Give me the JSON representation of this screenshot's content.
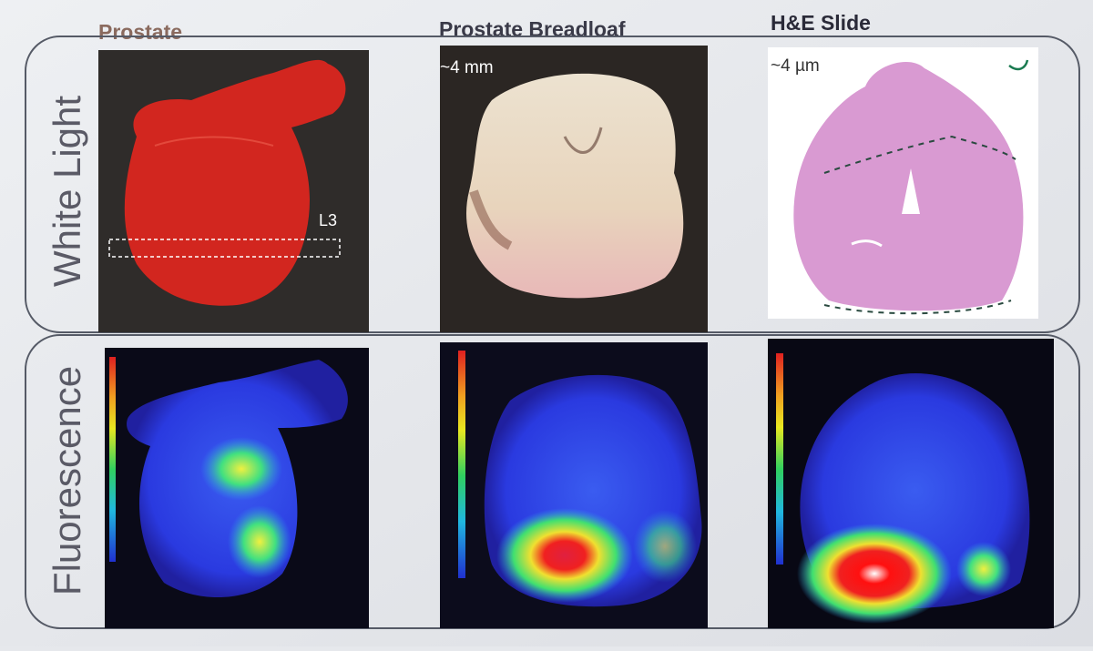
{
  "columns": [
    "Prostate",
    "Prostate Breadloaf",
    "H&E Slide"
  ],
  "rows": [
    "White Light",
    "Fluorescence"
  ],
  "annotations": {
    "section_label": "L3",
    "breadloaf_thickness": "~4 mm",
    "slide_thickness": "~4 µm"
  }
}
